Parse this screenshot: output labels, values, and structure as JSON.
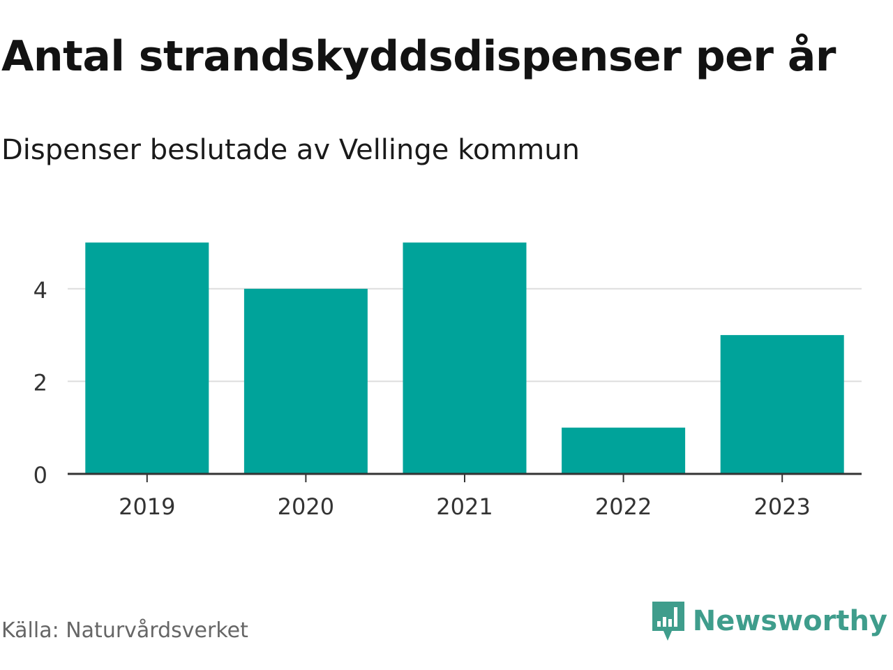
{
  "title": "Antal strandskyddsdispenser per år",
  "subtitle": "Dispenser beslutade av Vellinge kommun",
  "source": "Källa: Naturvårdsverket",
  "brand": {
    "name": "Newsworthy",
    "color": "#3f9d8c",
    "icon": "newsworthy-logo-icon"
  },
  "colors": {
    "bar": "#00a39a",
    "grid": "#dddddd",
    "axis": "#333333",
    "tick_text": "#333333"
  },
  "chart_data": {
    "type": "bar",
    "title": "Antal strandskyddsdispenser per år",
    "subtitle": "Dispenser beslutade av Vellinge kommun",
    "categories": [
      "2019",
      "2020",
      "2021",
      "2022",
      "2023"
    ],
    "values": [
      5,
      4,
      5,
      1,
      3
    ],
    "xlabel": "",
    "ylabel": "",
    "ylim": [
      0,
      5
    ],
    "yticks": [
      0,
      2,
      4
    ],
    "ytick_labels": [
      "0",
      "2",
      "4"
    ],
    "grid": true,
    "legend": "none"
  }
}
